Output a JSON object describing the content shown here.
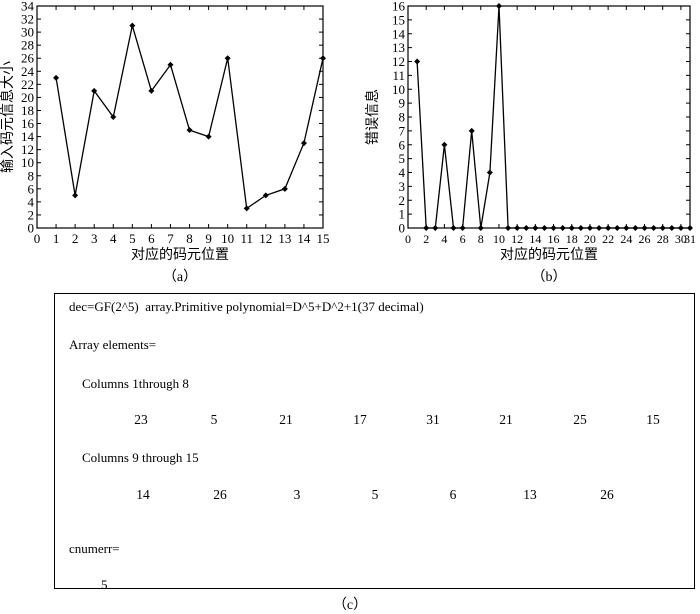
{
  "chart_data": [
    {
      "type": "line",
      "caption": "（a）",
      "xlabel": "对应的码元位置",
      "ylabel": "输入码元信息大小",
      "xlim": [
        0,
        15
      ],
      "ylim": [
        0,
        34
      ],
      "xticks": [
        0,
        1,
        2,
        3,
        4,
        5,
        6,
        7,
        8,
        9,
        10,
        11,
        12,
        13,
        14,
        15
      ],
      "yticks": [
        0,
        2,
        4,
        6,
        8,
        10,
        12,
        14,
        16,
        18,
        20,
        22,
        24,
        26,
        28,
        30,
        32,
        34
      ],
      "grid": false,
      "x": [
        1,
        2,
        3,
        4,
        5,
        6,
        7,
        8,
        9,
        10,
        11,
        12,
        13,
        14,
        15
      ],
      "values": [
        23,
        5,
        21,
        17,
        31,
        21,
        25,
        15,
        14,
        26,
        3,
        5,
        6,
        13,
        26
      ]
    },
    {
      "type": "line",
      "caption": "（b）",
      "xlabel": "对应的码元位置",
      "ylabel": "错误信息",
      "xlim": [
        0,
        31
      ],
      "ylim": [
        0,
        16
      ],
      "xticks": [
        0,
        2,
        4,
        6,
        8,
        10,
        12,
        14,
        16,
        18,
        20,
        22,
        24,
        26,
        28,
        30,
        31
      ],
      "yticks": [
        0,
        1,
        2,
        3,
        4,
        5,
        6,
        7,
        8,
        9,
        10,
        11,
        12,
        13,
        14,
        15,
        16
      ],
      "grid": false,
      "x": [
        1,
        2,
        3,
        4,
        5,
        6,
        7,
        8,
        9,
        10,
        11,
        12,
        13,
        14,
        15,
        16,
        17,
        18,
        19,
        20,
        21,
        22,
        23,
        24,
        25,
        26,
        27,
        28,
        29,
        30,
        31
      ],
      "values": [
        12,
        0,
        0,
        6,
        0,
        0,
        7,
        0,
        4,
        16,
        0,
        0,
        0,
        0,
        0,
        0,
        0,
        0,
        0,
        0,
        0,
        0,
        0,
        0,
        0,
        0,
        0,
        0,
        0,
        0,
        0
      ]
    }
  ],
  "console": {
    "caption": "（c）",
    "line1": "dec=GF(2^5)  array.Primitive polynomial=D^5+D^2+1(37 decimal)",
    "line2": "Array elements=",
    "line3": "Columns 1through 8",
    "row1": [
      "23",
      "5",
      "21",
      "17",
      "31",
      "21",
      "25",
      "15"
    ],
    "line4": "Columns 9 through 15",
    "row2": [
      "14",
      "26",
      "3",
      "5",
      "6",
      "13",
      "26"
    ],
    "line5": "cnumerr=",
    "line6": "5"
  }
}
